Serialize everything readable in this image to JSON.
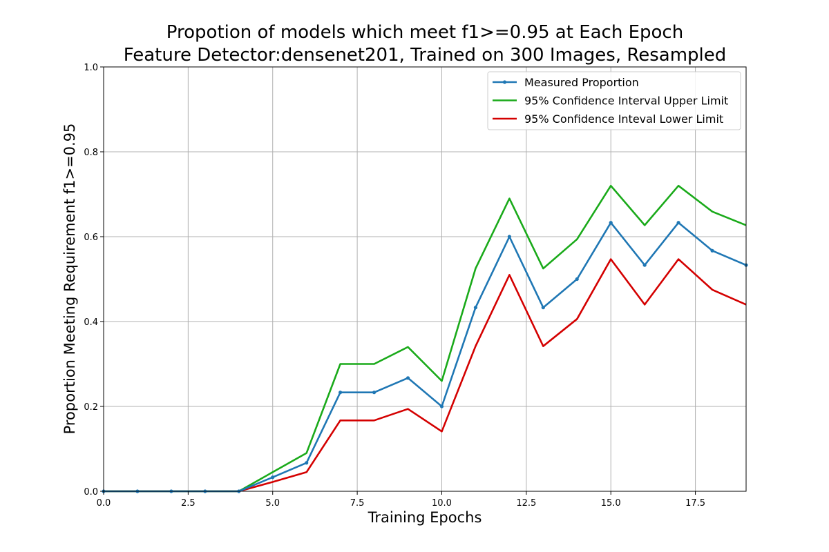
{
  "chart_data": {
    "type": "line",
    "title": "Propotion of models which meet f1>=0.95 at Each Epoch",
    "subtitle": "Feature Detector:densenet201, Trained on 300 Images, Resampled",
    "xlabel": "Training Epochs",
    "ylabel": "Proportion Meeting Requirement f1>=0.95",
    "xlim": [
      0,
      19
    ],
    "ylim": [
      0,
      1.0
    ],
    "grid": true,
    "legend_position": "top-right",
    "x_ticks": [
      "0.0",
      "2.5",
      "5.0",
      "7.5",
      "10.0",
      "12.5",
      "15.0",
      "17.5"
    ],
    "y_ticks": [
      "0.0",
      "0.2",
      "0.4",
      "0.6",
      "0.8",
      "1.0"
    ],
    "x": [
      0,
      1,
      2,
      3,
      4,
      5,
      6,
      7,
      8,
      9,
      10,
      11,
      12,
      13,
      14,
      15,
      16,
      17,
      18,
      19
    ],
    "series": [
      {
        "name": "Measured Proportion",
        "color": "#1f77b4",
        "markers": true,
        "values": [
          0,
          0,
          0,
          0,
          0,
          0.033,
          0.067,
          0.233,
          0.233,
          0.267,
          0.2,
          0.433,
          0.6,
          0.433,
          0.5,
          0.633,
          0.533,
          0.633,
          0.567,
          0.533
        ]
      },
      {
        "name": "95% Confidence Interval Upper Limit",
        "color": "#1aaa1a",
        "markers": false,
        "values": [
          0,
          0,
          0,
          0,
          0,
          0.045,
          0.09,
          0.3,
          0.3,
          0.34,
          0.26,
          0.525,
          0.69,
          0.525,
          0.594,
          0.72,
          0.627,
          0.72,
          0.659,
          0.627
        ]
      },
      {
        "name": "95% Confidence Inteval Lower Limit",
        "color": "#d40000",
        "markers": false,
        "values": [
          0,
          0,
          0,
          0,
          0,
          0.022,
          0.045,
          0.167,
          0.167,
          0.194,
          0.141,
          0.342,
          0.51,
          0.342,
          0.406,
          0.547,
          0.44,
          0.547,
          0.475,
          0.44
        ]
      }
    ]
  }
}
